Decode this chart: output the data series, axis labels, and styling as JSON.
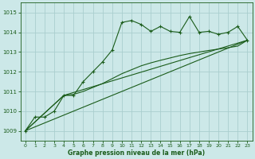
{
  "title": "Graphe pression niveau de la mer (hPa)",
  "bg_color": "#cce8e8",
  "grid_color": "#aacece",
  "line_color": "#1a5c1a",
  "xlim": [
    -0.5,
    23.5
  ],
  "ylim": [
    1008.5,
    1015.5
  ],
  "yticks": [
    1009,
    1010,
    1011,
    1012,
    1013,
    1014,
    1015
  ],
  "xticks": [
    0,
    1,
    2,
    3,
    4,
    5,
    6,
    7,
    8,
    9,
    10,
    11,
    12,
    13,
    14,
    15,
    16,
    17,
    18,
    19,
    20,
    21,
    22,
    23
  ],
  "series1_x": [
    0,
    1,
    2,
    3,
    4,
    5,
    6,
    7,
    8,
    9,
    10,
    11,
    12,
    13,
    14,
    15,
    16,
    17,
    18,
    19,
    20,
    21,
    22,
    23
  ],
  "series1_y": [
    1009.0,
    1009.7,
    1009.7,
    1010.0,
    1010.8,
    1010.8,
    1011.5,
    1012.0,
    1012.5,
    1013.1,
    1014.5,
    1014.6,
    1014.4,
    1014.05,
    1014.3,
    1014.05,
    1014.0,
    1014.8,
    1014.0,
    1014.05,
    1013.9,
    1014.0,
    1014.3,
    1013.6
  ],
  "series2_x": [
    0,
    4,
    5,
    6,
    7,
    8,
    9,
    10,
    11,
    12,
    13,
    14,
    15,
    16,
    17,
    18,
    19,
    20,
    21,
    22,
    23
  ],
  "series2_y": [
    1009.0,
    1010.8,
    1010.85,
    1011.0,
    1011.2,
    1011.4,
    1011.65,
    1011.9,
    1012.1,
    1012.3,
    1012.45,
    1012.58,
    1012.7,
    1012.82,
    1012.92,
    1013.0,
    1013.08,
    1013.15,
    1013.22,
    1013.3,
    1013.6
  ],
  "series3_x": [
    0,
    23
  ],
  "series3_y": [
    1009.0,
    1013.6
  ],
  "series4_x": [
    0,
    4,
    23
  ],
  "series4_y": [
    1009.0,
    1010.8,
    1013.6
  ],
  "figsize": [
    3.2,
    2.0
  ],
  "dpi": 100
}
